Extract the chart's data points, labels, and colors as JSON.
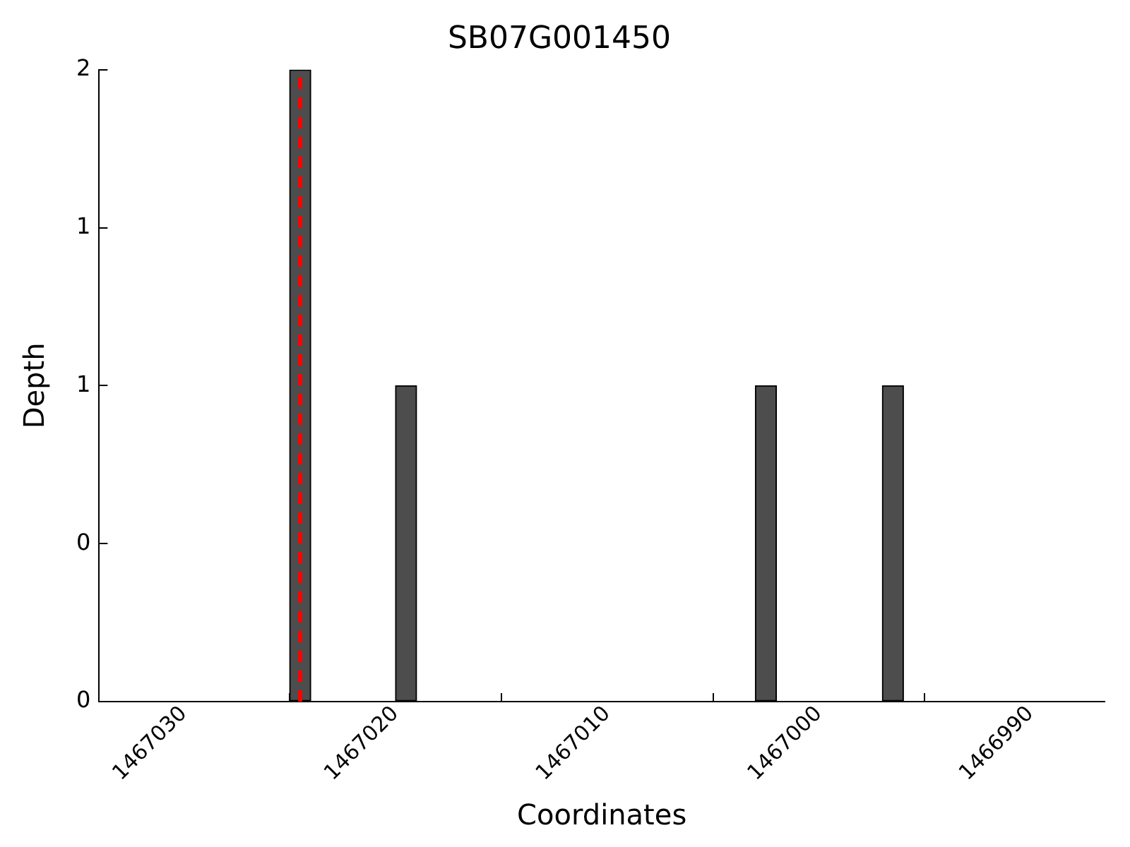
{
  "chart_data": {
    "type": "bar",
    "title": "SB07G001450",
    "xlabel": "Coordinates",
    "ylabel": "Depth",
    "x": [
      1467024.5,
      1467019.5,
      1467002.5,
      1466996.5
    ],
    "values": [
      2,
      1,
      1,
      1
    ],
    "color": "#4d4d4d",
    "xlim": [
      1467034,
      1466986.5
    ],
    "xticks": [
      1467030,
      1467020,
      1467010,
      1467000,
      1466990
    ],
    "ylim": [
      0,
      2
    ],
    "yticks": [
      {
        "value": 0,
        "label": "0"
      },
      {
        "value": 0.5,
        "label": "0"
      },
      {
        "value": 1,
        "label": "1"
      },
      {
        "value": 1.5,
        "label": "1"
      },
      {
        "value": 2,
        "label": "2"
      }
    ],
    "ref_lines": [
      {
        "axis": "x",
        "value": 1467024.5,
        "color": "#ff0000",
        "line_style": "dashed"
      }
    ],
    "grid": false,
    "legend": false
  }
}
